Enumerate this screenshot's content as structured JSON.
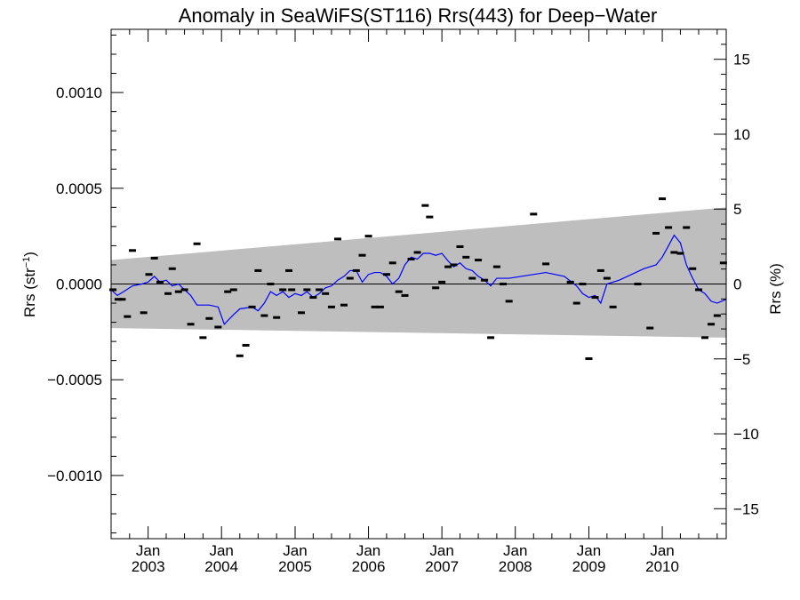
{
  "chart_data": {
    "type": "scatter",
    "title": "Anomaly in SeaWiFS(ST116) Rrs(443) for Deep−Water",
    "ylabel_left": {
      "base": "Rrs (str",
      "sup": "−1",
      "close": ")"
    },
    "ylabel_right": "Rrs (%)",
    "xlim": [
      "2002-07-01",
      "2010-11-15"
    ],
    "ylim": [
      -0.00133,
      0.00133
    ],
    "y2lim": [
      -17,
      17
    ],
    "y_ticks": [
      {
        "v": 0.001,
        "label": "0.0010"
      },
      {
        "v": 0.0005,
        "label": "0.0005"
      },
      {
        "v": 0.0,
        "label": "0.0000"
      },
      {
        "v": -0.0005,
        "label": "−0.0005"
      },
      {
        "v": -0.001,
        "label": "−0.0010"
      }
    ],
    "y2_ticks": [
      {
        "v": 15,
        "label": "15"
      },
      {
        "v": 10,
        "label": "10"
      },
      {
        "v": 5,
        "label": "5"
      },
      {
        "v": 0,
        "label": "0"
      },
      {
        "v": -5,
        "label": "−5"
      },
      {
        "v": -10,
        "label": "−10"
      },
      {
        "v": -15,
        "label": "−15"
      }
    ],
    "x_ticks": [
      {
        "date": "2003-01-01",
        "month": "Jan",
        "year": "2003"
      },
      {
        "date": "2004-01-01",
        "month": "Jan",
        "year": "2004"
      },
      {
        "date": "2005-01-01",
        "month": "Jan",
        "year": "2005"
      },
      {
        "date": "2006-01-01",
        "month": "Jan",
        "year": "2006"
      },
      {
        "date": "2007-01-01",
        "month": "Jan",
        "year": "2007"
      },
      {
        "date": "2008-01-01",
        "month": "Jan",
        "year": "2008"
      },
      {
        "date": "2009-01-01",
        "month": "Jan",
        "year": "2009"
      },
      {
        "date": "2010-01-01",
        "month": "Jan",
        "year": "2010"
      }
    ],
    "uncertainty_band": {
      "color": "#bebebe",
      "start": {
        "date": "2002-07-01",
        "upper": 0.000125,
        "lower": -0.00023
      },
      "end": {
        "date": "2010-11-15",
        "upper": 0.0004,
        "lower": -0.00028
      }
    },
    "zero_line": 0,
    "series": [
      {
        "kind": "points",
        "color": "#000000",
        "points": [
          {
            "x": "2002-07-10",
            "y": -3e-05
          },
          {
            "x": "2002-08-05",
            "y": -8e-05
          },
          {
            "x": "2002-08-25",
            "y": -8e-05
          },
          {
            "x": "2002-09-20",
            "y": -0.00017
          },
          {
            "x": "2002-10-15",
            "y": 0.000175
          },
          {
            "x": "2002-12-10",
            "y": -0.00015
          },
          {
            "x": "2003-01-05",
            "y": 5e-05
          },
          {
            "x": "2003-02-01",
            "y": 0.000135
          },
          {
            "x": "2003-03-01",
            "y": 1e-05
          },
          {
            "x": "2003-04-10",
            "y": -5e-05
          },
          {
            "x": "2003-05-01",
            "y": 8e-05
          },
          {
            "x": "2003-06-01",
            "y": -4e-05
          },
          {
            "x": "2003-07-01",
            "y": -3e-05
          },
          {
            "x": "2003-08-01",
            "y": -0.00021
          },
          {
            "x": "2003-09-01",
            "y": 0.00021
          },
          {
            "x": "2003-10-01",
            "y": -0.00028
          },
          {
            "x": "2003-11-01",
            "y": -0.00018
          },
          {
            "x": "2003-12-15",
            "y": -0.000225
          },
          {
            "x": "2004-02-01",
            "y": -4e-05
          },
          {
            "x": "2004-03-01",
            "y": -3e-05
          },
          {
            "x": "2004-04-01",
            "y": -0.000375
          },
          {
            "x": "2004-05-01",
            "y": -0.00032
          },
          {
            "x": "2004-06-01",
            "y": -0.00012
          },
          {
            "x": "2004-07-01",
            "y": 7e-05
          },
          {
            "x": "2004-08-01",
            "y": -0.000165
          },
          {
            "x": "2004-09-01",
            "y": 0.0
          },
          {
            "x": "2004-10-01",
            "y": -0.000175
          },
          {
            "x": "2004-11-01",
            "y": -3e-05
          },
          {
            "x": "2004-12-01",
            "y": 7e-05
          },
          {
            "x": "2004-12-15",
            "y": -3e-05
          },
          {
            "x": "2005-02-01",
            "y": -0.00015
          },
          {
            "x": "2005-03-01",
            "y": -3e-05
          },
          {
            "x": "2005-04-01",
            "y": -7e-05
          },
          {
            "x": "2005-05-01",
            "y": -3e-05
          },
          {
            "x": "2005-06-01",
            "y": -5e-05
          },
          {
            "x": "2005-07-01",
            "y": -0.00012
          },
          {
            "x": "2005-08-01",
            "y": 0.000235
          },
          {
            "x": "2005-09-01",
            "y": -0.00011
          },
          {
            "x": "2005-10-01",
            "y": 3e-05
          },
          {
            "x": "2005-11-01",
            "y": 7e-05
          },
          {
            "x": "2005-12-01",
            "y": 0.00015
          },
          {
            "x": "2006-01-01",
            "y": 0.00025
          },
          {
            "x": "2006-02-01",
            "y": -0.00012
          },
          {
            "x": "2006-03-01",
            "y": -0.00012
          },
          {
            "x": "2006-04-01",
            "y": 5e-05
          },
          {
            "x": "2006-05-01",
            "y": 0.00011
          },
          {
            "x": "2006-06-01",
            "y": -4e-05
          },
          {
            "x": "2006-07-01",
            "y": -6e-05
          },
          {
            "x": "2006-08-01",
            "y": 0.00013
          },
          {
            "x": "2006-09-01",
            "y": 0.000165
          },
          {
            "x": "2006-10-10",
            "y": 0.00041
          },
          {
            "x": "2006-11-01",
            "y": 0.00035
          },
          {
            "x": "2006-12-01",
            "y": -2e-05
          },
          {
            "x": "2007-01-01",
            "y": 1e-05
          },
          {
            "x": "2007-02-01",
            "y": 9e-05
          },
          {
            "x": "2007-03-01",
            "y": 0.0001
          },
          {
            "x": "2007-04-01",
            "y": 0.000195
          },
          {
            "x": "2007-05-01",
            "y": 0.00014
          },
          {
            "x": "2007-06-01",
            "y": 3e-05
          },
          {
            "x": "2007-07-01",
            "y": 0.000125
          },
          {
            "x": "2007-08-01",
            "y": 2e-05
          },
          {
            "x": "2007-09-01",
            "y": -0.00028
          },
          {
            "x": "2007-10-01",
            "y": 9e-05
          },
          {
            "x": "2007-11-01",
            "y": 0.0
          },
          {
            "x": "2007-12-01",
            "y": -9e-05
          },
          {
            "x": "2008-04-01",
            "y": 0.000365
          },
          {
            "x": "2008-06-01",
            "y": 0.000105
          },
          {
            "x": "2008-10-01",
            "y": 1e-05
          },
          {
            "x": "2008-11-01",
            "y": -0.0001
          },
          {
            "x": "2008-12-01",
            "y": 0.0
          },
          {
            "x": "2009-01-01",
            "y": -0.00039
          },
          {
            "x": "2009-02-01",
            "y": -7e-05
          },
          {
            "x": "2009-03-01",
            "y": 7e-05
          },
          {
            "x": "2009-04-01",
            "y": 3e-05
          },
          {
            "x": "2009-05-01",
            "y": -0.00012
          },
          {
            "x": "2009-09-01",
            "y": 0.0
          },
          {
            "x": "2009-11-01",
            "y": -0.00023
          },
          {
            "x": "2009-12-01",
            "y": 0.000265
          },
          {
            "x": "2010-01-01",
            "y": 0.000445
          },
          {
            "x": "2010-02-01",
            "y": 0.000295
          },
          {
            "x": "2010-03-01",
            "y": 0.000165
          },
          {
            "x": "2010-04-01",
            "y": 0.00016
          },
          {
            "x": "2010-05-01",
            "y": 0.000295
          },
          {
            "x": "2010-06-01",
            "y": 8e-05
          },
          {
            "x": "2010-07-01",
            "y": -3e-05
          },
          {
            "x": "2010-08-01",
            "y": -0.00028
          },
          {
            "x": "2010-09-01",
            "y": -0.00021
          },
          {
            "x": "2010-10-01",
            "y": -0.000165
          },
          {
            "x": "2010-11-01",
            "y": 0.00011
          }
        ]
      },
      {
        "kind": "line",
        "color": "#0000ff",
        "points": [
          {
            "x": "2002-07-01",
            "y": -3e-05
          },
          {
            "x": "2002-08-01",
            "y": -6e-05
          },
          {
            "x": "2002-09-01",
            "y": -4e-05
          },
          {
            "x": "2002-10-15",
            "y": -1e-05
          },
          {
            "x": "2002-12-01",
            "y": 0.0
          },
          {
            "x": "2003-01-01",
            "y": 1e-05
          },
          {
            "x": "2003-02-01",
            "y": 4e-05
          },
          {
            "x": "2003-03-01",
            "y": 1e-05
          },
          {
            "x": "2003-04-01",
            "y": 2e-05
          },
          {
            "x": "2003-05-01",
            "y": -1e-05
          },
          {
            "x": "2003-06-01",
            "y": 0.0
          },
          {
            "x": "2003-07-01",
            "y": -3e-05
          },
          {
            "x": "2003-08-01",
            "y": -6e-05
          },
          {
            "x": "2003-09-01",
            "y": -0.00011
          },
          {
            "x": "2003-11-01",
            "y": -0.00011
          },
          {
            "x": "2003-12-15",
            "y": -0.00012
          },
          {
            "x": "2004-01-15",
            "y": -0.00021
          },
          {
            "x": "2004-03-01",
            "y": -0.00016
          },
          {
            "x": "2004-04-01",
            "y": -0.00013
          },
          {
            "x": "2004-06-01",
            "y": -0.00012
          },
          {
            "x": "2004-07-01",
            "y": -0.00014
          },
          {
            "x": "2004-08-01",
            "y": -0.0001
          },
          {
            "x": "2004-09-01",
            "y": -4e-05
          },
          {
            "x": "2004-10-01",
            "y": -6e-05
          },
          {
            "x": "2004-11-01",
            "y": -4e-05
          },
          {
            "x": "2004-12-01",
            "y": -7e-05
          },
          {
            "x": "2005-01-01",
            "y": -5e-05
          },
          {
            "x": "2005-02-01",
            "y": -6e-05
          },
          {
            "x": "2005-03-01",
            "y": -4e-05
          },
          {
            "x": "2005-04-01",
            "y": -7e-05
          },
          {
            "x": "2005-05-01",
            "y": -5e-05
          },
          {
            "x": "2005-06-01",
            "y": -2e-05
          },
          {
            "x": "2005-07-01",
            "y": -1e-05
          },
          {
            "x": "2005-08-01",
            "y": 2e-05
          },
          {
            "x": "2005-09-01",
            "y": 4e-05
          },
          {
            "x": "2005-10-01",
            "y": 7e-05
          },
          {
            "x": "2005-11-01",
            "y": 7e-05
          },
          {
            "x": "2005-12-01",
            "y": 1e-05
          },
          {
            "x": "2006-01-01",
            "y": 5e-05
          },
          {
            "x": "2006-02-01",
            "y": 6e-05
          },
          {
            "x": "2006-03-01",
            "y": 6e-05
          },
          {
            "x": "2006-04-01",
            "y": 4e-05
          },
          {
            "x": "2006-05-01",
            "y": 0.0
          },
          {
            "x": "2006-06-01",
            "y": 3e-05
          },
          {
            "x": "2006-07-01",
            "y": 0.0001
          },
          {
            "x": "2006-08-01",
            "y": 0.00014
          },
          {
            "x": "2006-09-01",
            "y": 0.00013
          },
          {
            "x": "2006-10-01",
            "y": 0.00016
          },
          {
            "x": "2006-11-01",
            "y": 0.00016
          },
          {
            "x": "2006-12-01",
            "y": 0.00015
          },
          {
            "x": "2007-01-01",
            "y": 0.00016
          },
          {
            "x": "2007-02-01",
            "y": 0.00012
          },
          {
            "x": "2007-03-01",
            "y": 9e-05
          },
          {
            "x": "2007-04-01",
            "y": 0.00011
          },
          {
            "x": "2007-05-01",
            "y": 8e-05
          },
          {
            "x": "2007-06-01",
            "y": 7e-05
          },
          {
            "x": "2007-07-01",
            "y": 4e-05
          },
          {
            "x": "2007-08-01",
            "y": 2e-05
          },
          {
            "x": "2007-09-01",
            "y": -1e-05
          },
          {
            "x": "2007-10-01",
            "y": 3e-05
          },
          {
            "x": "2007-11-01",
            "y": 3e-05
          },
          {
            "x": "2007-12-01",
            "y": 3e-05
          },
          {
            "x": "2008-06-01",
            "y": 6e-05
          },
          {
            "x": "2008-09-01",
            "y": 4e-05
          },
          {
            "x": "2008-11-01",
            "y": -1e-05
          },
          {
            "x": "2008-12-01",
            "y": -5e-05
          },
          {
            "x": "2009-01-01",
            "y": -7e-05
          },
          {
            "x": "2009-02-01",
            "y": -6e-05
          },
          {
            "x": "2009-03-01",
            "y": -0.0001
          },
          {
            "x": "2009-04-01",
            "y": 0.0
          },
          {
            "x": "2009-06-01",
            "y": 2e-05
          },
          {
            "x": "2009-10-01",
            "y": 8e-05
          },
          {
            "x": "2009-12-01",
            "y": 0.0001
          },
          {
            "x": "2010-01-01",
            "y": 0.00014
          },
          {
            "x": "2010-02-01",
            "y": 0.0002
          },
          {
            "x": "2010-03-01",
            "y": 0.000255
          },
          {
            "x": "2010-04-01",
            "y": 0.000215
          },
          {
            "x": "2010-05-01",
            "y": 0.0001
          },
          {
            "x": "2010-06-01",
            "y": 3e-05
          },
          {
            "x": "2010-07-01",
            "y": -3e-05
          },
          {
            "x": "2010-08-01",
            "y": -5e-05
          },
          {
            "x": "2010-09-01",
            "y": -9e-05
          },
          {
            "x": "2010-10-01",
            "y": -0.0001
          },
          {
            "x": "2010-11-15",
            "y": -8e-05
          }
        ]
      }
    ]
  }
}
